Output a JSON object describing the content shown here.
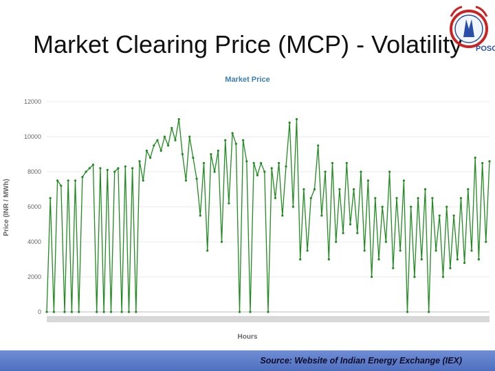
{
  "slide": {
    "title": "Market Clearing Price (MCP) - Volatility",
    "source": "Source: Website of Indian Energy Exchange (IEX)",
    "logo_text": "POSOCO"
  },
  "colors": {
    "series": "#1f8b1f",
    "chart_title": "#3a7fb5",
    "axis_text": "#666666",
    "grid": "#e8e8e8",
    "footer": "#5a78c8"
  },
  "chart_data": {
    "type": "line",
    "title": "Market Price",
    "xlabel": "Hours",
    "ylabel": "Price (INR / MWh)",
    "ylim": [
      0,
      12000
    ],
    "yticks": [
      0,
      2000,
      4000,
      6000,
      8000,
      10000,
      12000
    ],
    "grid": false,
    "series": [
      {
        "name": "",
        "values": [
          0,
          6500,
          0,
          7500,
          7200,
          0,
          7500,
          0,
          7500,
          0,
          7700,
          8000,
          8200,
          8400,
          0,
          8200,
          0,
          8100,
          0,
          8000,
          8200,
          0,
          8300,
          0,
          8200,
          0,
          8600,
          7500,
          9200,
          8800,
          9500,
          9800,
          9200,
          10000,
          9500,
          10500,
          9800,
          11000,
          9000,
          7500,
          10000,
          8800,
          7600,
          5500,
          8500,
          3500,
          9000,
          8000,
          9200,
          4000,
          9800,
          6200,
          10200,
          9600,
          0,
          9800,
          8600,
          0,
          8500,
          7800,
          8500,
          8000,
          0,
          8200,
          6500,
          8500,
          5500,
          8300,
          10800,
          6000,
          11000,
          3000,
          7000,
          3500,
          6500,
          7000,
          9500,
          5500,
          8000,
          3000,
          8500,
          4000,
          7000,
          4500,
          8500,
          5000,
          7000,
          4500,
          8000,
          3500,
          7500,
          2000,
          6500,
          3000,
          6000,
          4000,
          8000,
          2500,
          6500,
          3500,
          7500,
          0,
          6000,
          2000,
          6500,
          3000,
          7000,
          0,
          6500,
          3500,
          5500,
          2000,
          6000,
          2500,
          5500,
          3000,
          6500,
          2800,
          7000,
          3500,
          8800,
          3000,
          8500,
          4000,
          8600
        ],
        "note_values_are_approximate": ""
      }
    ]
  }
}
